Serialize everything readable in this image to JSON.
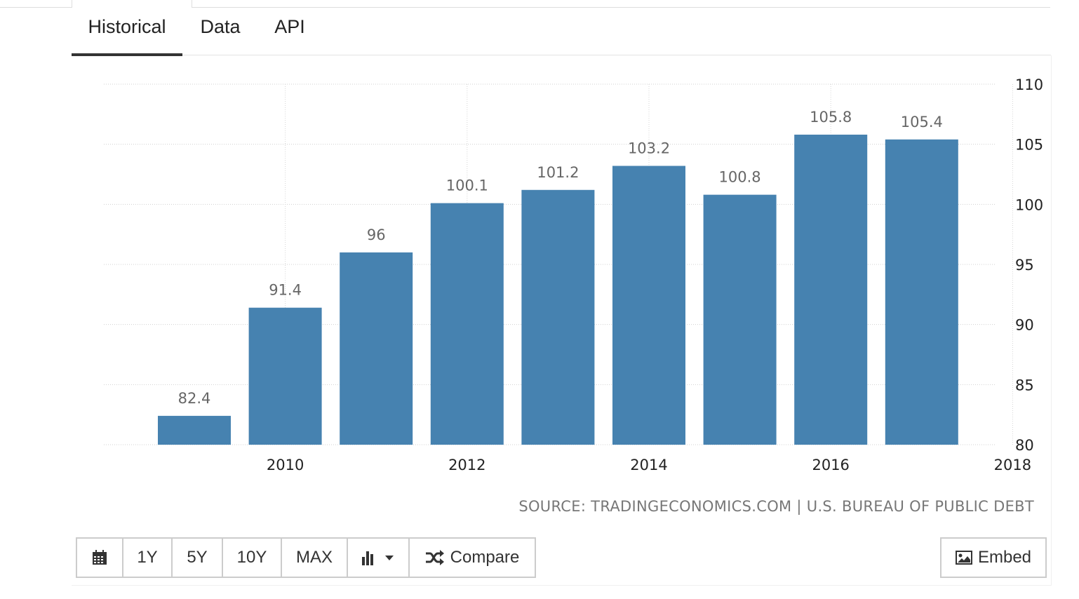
{
  "tabs": [
    {
      "label": "Historical",
      "active": true
    },
    {
      "label": "Data",
      "active": false
    },
    {
      "label": "API",
      "active": false
    }
  ],
  "chart_data": {
    "type": "bar",
    "categories": [
      "2009",
      "2010",
      "2011",
      "2012",
      "2013",
      "2014",
      "2015",
      "2016",
      "2017"
    ],
    "values": [
      82.4,
      91.4,
      96,
      100.1,
      101.2,
      103.2,
      100.8,
      105.8,
      105.4
    ],
    "value_labels": [
      "82.4",
      "91.4",
      "96",
      "100.1",
      "101.2",
      "103.2",
      "100.8",
      "105.8",
      "105.4"
    ],
    "x_tick_labels": [
      "2010",
      "2012",
      "2014",
      "2016",
      "2018"
    ],
    "y_ticks": [
      80,
      85,
      90,
      95,
      100,
      105,
      110
    ],
    "ylim": [
      80,
      110
    ],
    "color": "#4682b0",
    "title": "",
    "xlabel": "",
    "ylabel": "",
    "y_axis_side": "right",
    "grid": true
  },
  "source": "SOURCE: TRADINGECONOMICS.COM | U.S. BUREAU OF PUBLIC DEBT",
  "toolbar": {
    "calendar_icon": "calendar-icon",
    "btn_1y": "1Y",
    "btn_5y": "5Y",
    "btn_10y": "10Y",
    "btn_max": "MAX",
    "chart_type_icon": "bar-chart-icon",
    "compare_icon": "shuffle-icon",
    "compare_label": "Compare",
    "embed_icon": "image-icon",
    "embed_label": "Embed"
  }
}
